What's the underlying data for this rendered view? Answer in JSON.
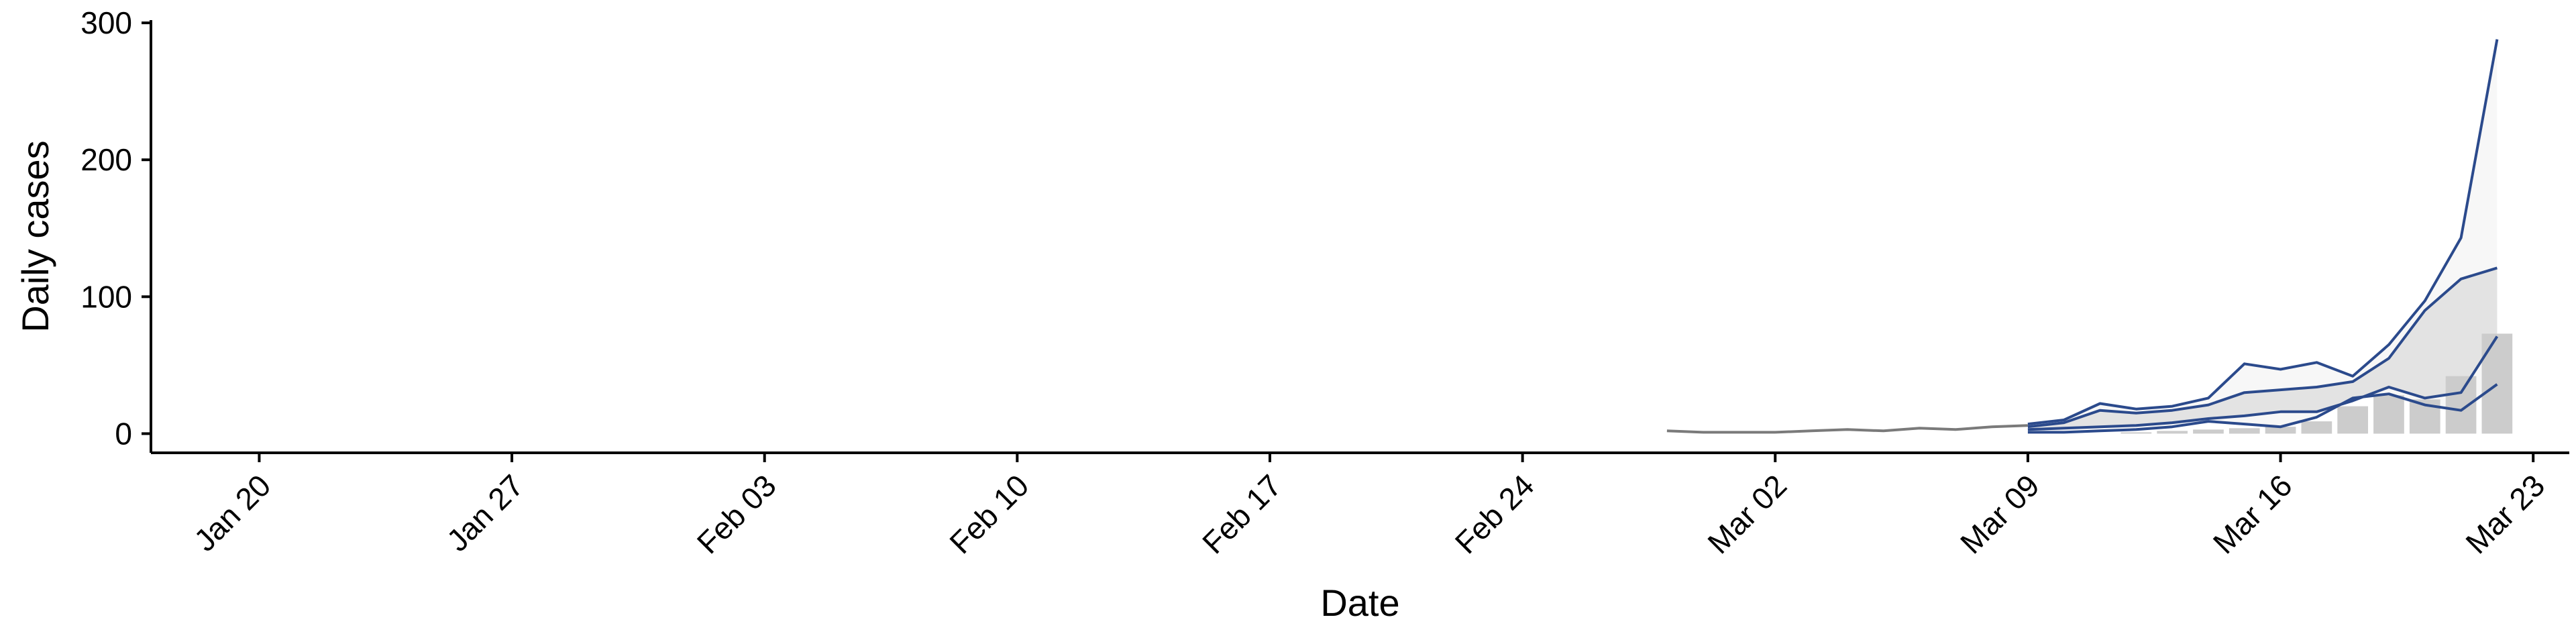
{
  "chart_data": {
    "type": "line",
    "title": "",
    "xlabel": "Date",
    "ylabel": "Daily cases",
    "x_ticks": [
      "Jan 20",
      "Jan 27",
      "Feb 03",
      "Feb 10",
      "Feb 17",
      "Feb 24",
      "Mar 02",
      "Mar 09",
      "Mar 16",
      "Mar 23"
    ],
    "x_tick_dates": [
      "2020-01-20",
      "2020-01-27",
      "2020-02-03",
      "2020-02-10",
      "2020-02-17",
      "2020-02-24",
      "2020-03-02",
      "2020-03-09",
      "2020-03-16",
      "2020-03-23"
    ],
    "xlim": [
      "2020-01-17",
      "2020-03-24"
    ],
    "y_ticks": [
      0,
      100,
      200,
      300
    ],
    "ylim": [
      -14,
      302
    ],
    "grid": false,
    "legend": "none",
    "colors": {
      "bars": "#cccccc",
      "band_outer": "#f7f7f7",
      "band_inner": "#e3e3e3",
      "projection_line": "#2b4a8c",
      "fit_line": "#7a7a7a",
      "axis": "#000000"
    },
    "observed_bars": {
      "dates": [
        "2020-03-09",
        "2020-03-10",
        "2020-03-11",
        "2020-03-12",
        "2020-03-13",
        "2020-03-14",
        "2020-03-15",
        "2020-03-16",
        "2020-03-17",
        "2020-03-18",
        "2020-03-19",
        "2020-03-20",
        "2020-03-21",
        "2020-03-22"
      ],
      "values": [
        0,
        0,
        0,
        1,
        2,
        3,
        4,
        5,
        9,
        20,
        28,
        25,
        42,
        73
      ]
    },
    "fitted_line": {
      "dates": [
        "2020-02-28",
        "2020-02-29",
        "2020-03-01",
        "2020-03-02",
        "2020-03-03",
        "2020-03-04",
        "2020-03-05",
        "2020-03-06",
        "2020-03-07",
        "2020-03-08",
        "2020-03-09"
      ],
      "values": [
        2,
        1,
        1,
        1,
        2,
        3,
        2,
        4,
        3,
        5,
        6
      ]
    },
    "projection": {
      "dates": [
        "2020-03-09",
        "2020-03-10",
        "2020-03-11",
        "2020-03-12",
        "2020-03-13",
        "2020-03-14",
        "2020-03-15",
        "2020-03-16",
        "2020-03-17",
        "2020-03-18",
        "2020-03-19",
        "2020-03-20",
        "2020-03-21",
        "2020-03-22"
      ],
      "upper": [
        7,
        10,
        22,
        18,
        20,
        26,
        51,
        47,
        52,
        42,
        65,
        97,
        143,
        288
      ],
      "upper_mid": [
        5,
        8,
        17,
        15,
        17,
        21,
        30,
        32,
        34,
        38,
        55,
        90,
        113,
        121
      ],
      "lower_mid": [
        3,
        4,
        5,
        6,
        8,
        11,
        13,
        16,
        16,
        24,
        34,
        26,
        30,
        71
      ],
      "lower": [
        1,
        1,
        2,
        3,
        5,
        9,
        7,
        5,
        12,
        26,
        29,
        21,
        17,
        36
      ]
    }
  }
}
